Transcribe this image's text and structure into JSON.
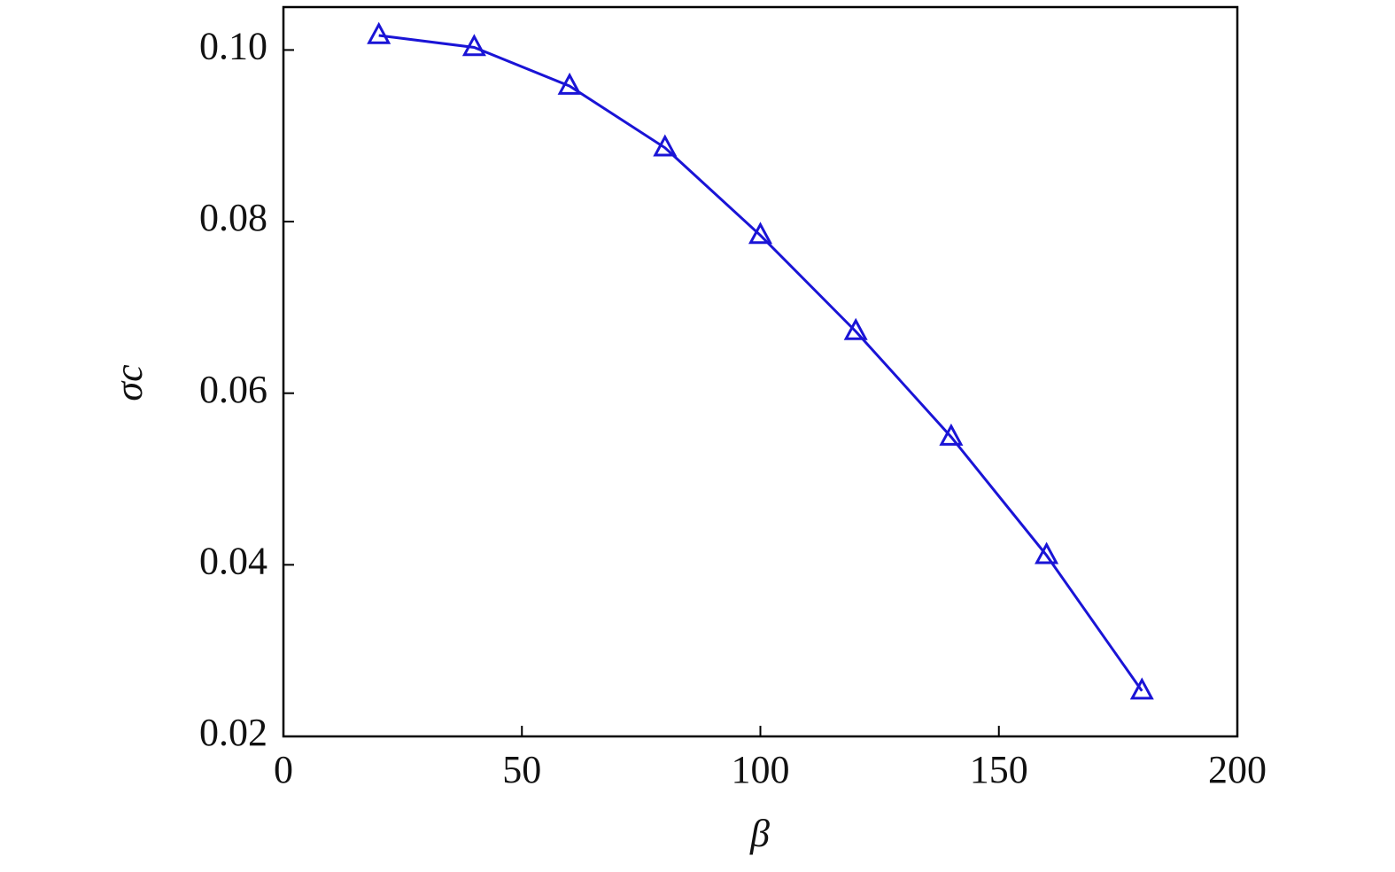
{
  "chart_data": {
    "type": "line",
    "xlabel": "β",
    "ylabel": "σc",
    "x": [
      20,
      40,
      60,
      80,
      100,
      120,
      140,
      160,
      180
    ],
    "values": [
      0.1017,
      0.1003,
      0.0958,
      0.0886,
      0.0784,
      0.0672,
      0.0549,
      0.0411,
      0.0253
    ],
    "color": "#1a14d6",
    "marker": "triangle",
    "xlim": [
      0,
      200
    ],
    "xticks": [
      0,
      50,
      100,
      150,
      200
    ],
    "ylim": [
      0.02,
      0.105
    ],
    "yticks": [
      0.02,
      0.04,
      0.06,
      0.08,
      {
        "value": 0.1,
        "label": "0.10"
      }
    ],
    "grid": false
  }
}
